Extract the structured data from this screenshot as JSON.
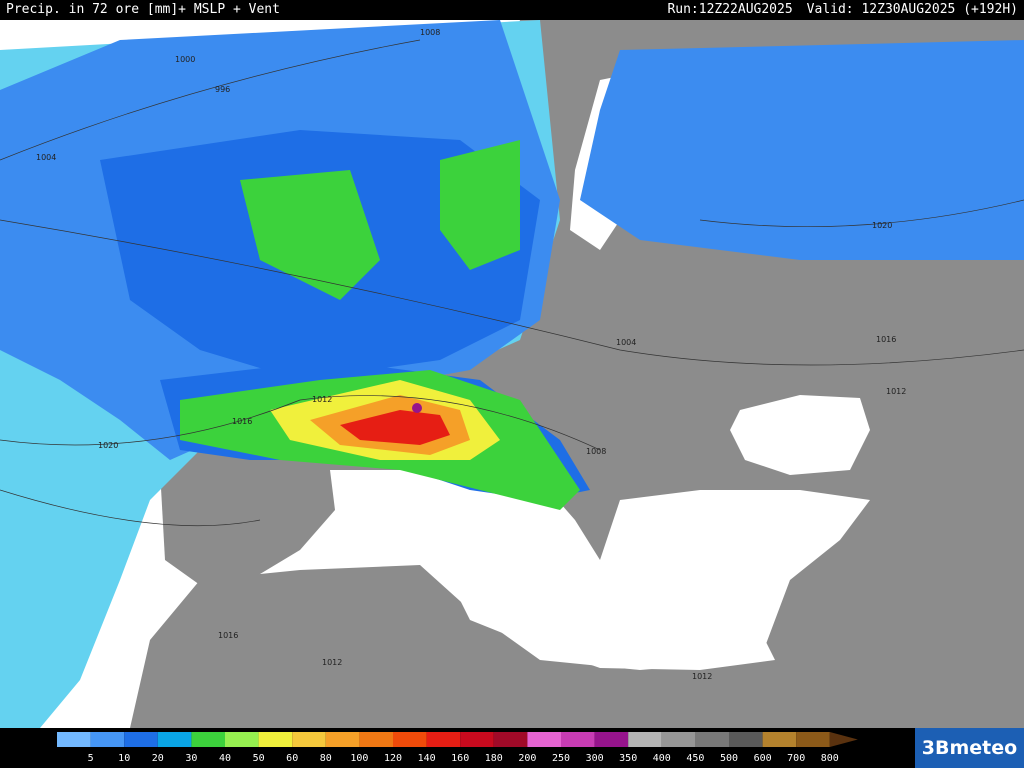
{
  "header": {
    "title": "Precip. in 72 ore [mm]+ MSLP + Vent",
    "run": "Run:12Z22AUG2025",
    "valid": "Valid: 12Z30AUG2025 (+192H)"
  },
  "isobars": {
    "labels": [
      "1008",
      "1000",
      "996",
      "1004",
      "1020",
      "1016",
      "1012",
      "1008",
      "1016",
      "1020",
      "1012",
      "1012",
      "1004",
      "1016",
      "1012"
    ]
  },
  "legend": {
    "values": [
      5,
      10,
      20,
      30,
      40,
      50,
      60,
      80,
      100,
      120,
      140,
      160,
      180,
      200,
      250,
      300,
      350,
      400,
      450,
      500,
      600,
      700,
      800
    ],
    "colors": [
      "#73b9ff",
      "#4696f5",
      "#1e6ee6",
      "#0aa5e6",
      "#3cd23c",
      "#96f050",
      "#f0f03c",
      "#f5c83c",
      "#f5a028",
      "#f07814",
      "#f04b0a",
      "#e61e14",
      "#c80a1e",
      "#a00a28",
      "#e664d2",
      "#c83cb4",
      "#96148c",
      "#b4b4b4",
      "#969696",
      "#787878",
      "#5a5a5a",
      "#b4822d",
      "#8c5a19",
      "#5a320f"
    ]
  },
  "logo": "3Bmeteo"
}
